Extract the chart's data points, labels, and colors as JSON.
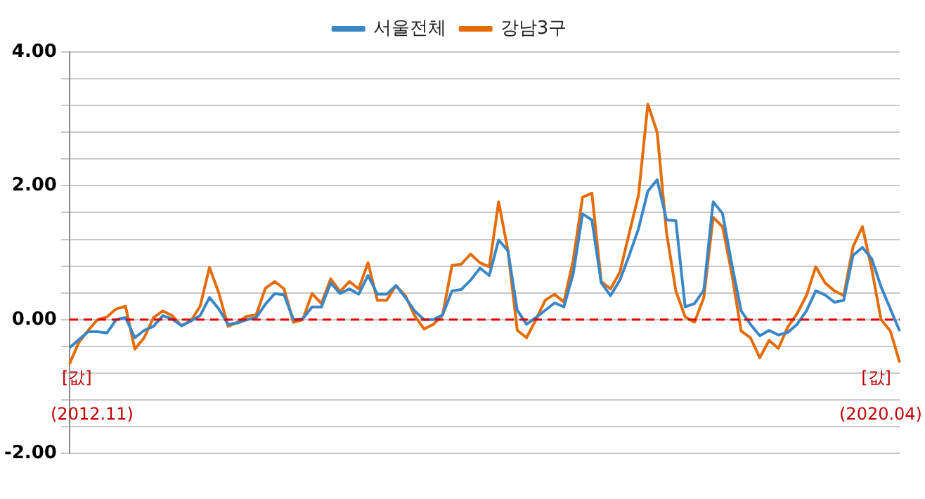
{
  "chart_data": {
    "type": "line",
    "categories": [
      null,
      null,
      null,
      null,
      null,
      null,
      null,
      null,
      null,
      null,
      null,
      null,
      null,
      null,
      null,
      null,
      null,
      null,
      null,
      null,
      null,
      null,
      null,
      null,
      null,
      null,
      null,
      null,
      null,
      null,
      null,
      null,
      null,
      null,
      null,
      null,
      null,
      null,
      null,
      null,
      null,
      null,
      null,
      null,
      null,
      null,
      null,
      null,
      null,
      null,
      null,
      null,
      null,
      null,
      null,
      null,
      null,
      null,
      null,
      null,
      null,
      null,
      null,
      null,
      null,
      null,
      null,
      null,
      null,
      null,
      null,
      null,
      null,
      null,
      null,
      null,
      null,
      null,
      null,
      null,
      null,
      null,
      null,
      null,
      null,
      null,
      null,
      null,
      null,
      null
    ],
    "series": [
      {
        "name": "서울전체",
        "color": "#3a87c8",
        "values": [
          -0.42,
          -0.3,
          -0.18,
          -0.18,
          -0.2,
          0,
          0.03,
          -0.27,
          -0.16,
          -0.1,
          0.06,
          0.01,
          -0.09,
          -0.02,
          0.06,
          0.33,
          0.16,
          -0.07,
          -0.05,
          0,
          0.03,
          0.23,
          0.39,
          0.37,
          0,
          0.01,
          0.19,
          0.19,
          0.55,
          0.39,
          0.46,
          0.38,
          0.66,
          0.38,
          0.38,
          0.51,
          0.33,
          0.13,
          0,
          0,
          0.07,
          0.43,
          0.45,
          0.59,
          0.77,
          0.66,
          1.19,
          1.03,
          0.14,
          -0.07,
          0.03,
          0.14,
          0.25,
          0.19,
          0.69,
          1.58,
          1.49,
          0.55,
          0.36,
          0.59,
          0.96,
          1.36,
          1.92,
          2.09,
          1.49,
          1.48,
          0.19,
          0.24,
          0.44,
          1.76,
          1.59,
          0.83,
          0.13,
          -0.07,
          -0.24,
          -0.16,
          -0.23,
          -0.19,
          -0.07,
          0.13,
          0.43,
          0.37,
          0.26,
          0.29,
          0.96,
          1.08,
          0.91,
          0.49,
          0.16,
          -0.17
        ]
      },
      {
        "name": "강남3구",
        "color": "#e46c0a",
        "values": [
          -0.66,
          -0.34,
          -0.16,
          0,
          0.04,
          0.16,
          0.2,
          -0.44,
          -0.27,
          0.03,
          0.13,
          0.06,
          -0.09,
          -0.02,
          0.2,
          0.78,
          0.4,
          -0.1,
          -0.04,
          0.05,
          0.07,
          0.47,
          0.57,
          0.46,
          -0.04,
          0,
          0.39,
          0.24,
          0.61,
          0.42,
          0.57,
          0.46,
          0.85,
          0.29,
          0.29,
          0.51,
          0.36,
          0.06,
          -0.14,
          -0.07,
          0.07,
          0.81,
          0.83,
          0.98,
          0.85,
          0.79,
          1.76,
          1.03,
          -0.16,
          -0.27,
          0,
          0.29,
          0.38,
          0.26,
          0.89,
          1.83,
          1.89,
          0.57,
          0.46,
          0.71,
          1.29,
          1.86,
          3.22,
          2.8,
          1.3,
          0.43,
          0.04,
          -0.04,
          0.33,
          1.53,
          1.39,
          0.69,
          -0.17,
          -0.27,
          -0.57,
          -0.31,
          -0.43,
          -0.11,
          0.09,
          0.36,
          0.79,
          0.55,
          0.43,
          0.36,
          1.09,
          1.39,
          0.76,
          0,
          -0.17,
          -0.64
        ]
      }
    ],
    "ylim": [
      -2,
      4
    ],
    "yticks": [
      {
        "value": -2,
        "label": "-2.00"
      },
      {
        "value": -1.6,
        "label": null
      },
      {
        "value": -1.2,
        "label": null
      },
      {
        "value": -0.8,
        "label": null
      },
      {
        "value": -0.4,
        "label": null
      },
      {
        "value": 0,
        "label": "0.00"
      },
      {
        "value": 0.4,
        "label": null
      },
      {
        "value": 0.8,
        "label": null
      },
      {
        "value": 1.2,
        "label": null
      },
      {
        "value": 1.6,
        "label": null
      },
      {
        "value": 2,
        "label": "2.00"
      },
      {
        "value": 2.4,
        "label": null
      },
      {
        "value": 2.8,
        "label": null
      },
      {
        "value": 3.2,
        "label": null
      },
      {
        "value": 3.6,
        "label": null
      },
      {
        "value": 4,
        "label": "4.00"
      }
    ],
    "grid": "y",
    "legend": "top",
    "marker": "none",
    "line_style": "solid",
    "ref_lines": [
      {
        "axis": "y",
        "value": 0,
        "color": "#e00000",
        "line_style": "dashed"
      }
    ],
    "annotations": [
      "[값]",
      "(2012.11)",
      "[값]",
      "(2020.04)"
    ]
  }
}
